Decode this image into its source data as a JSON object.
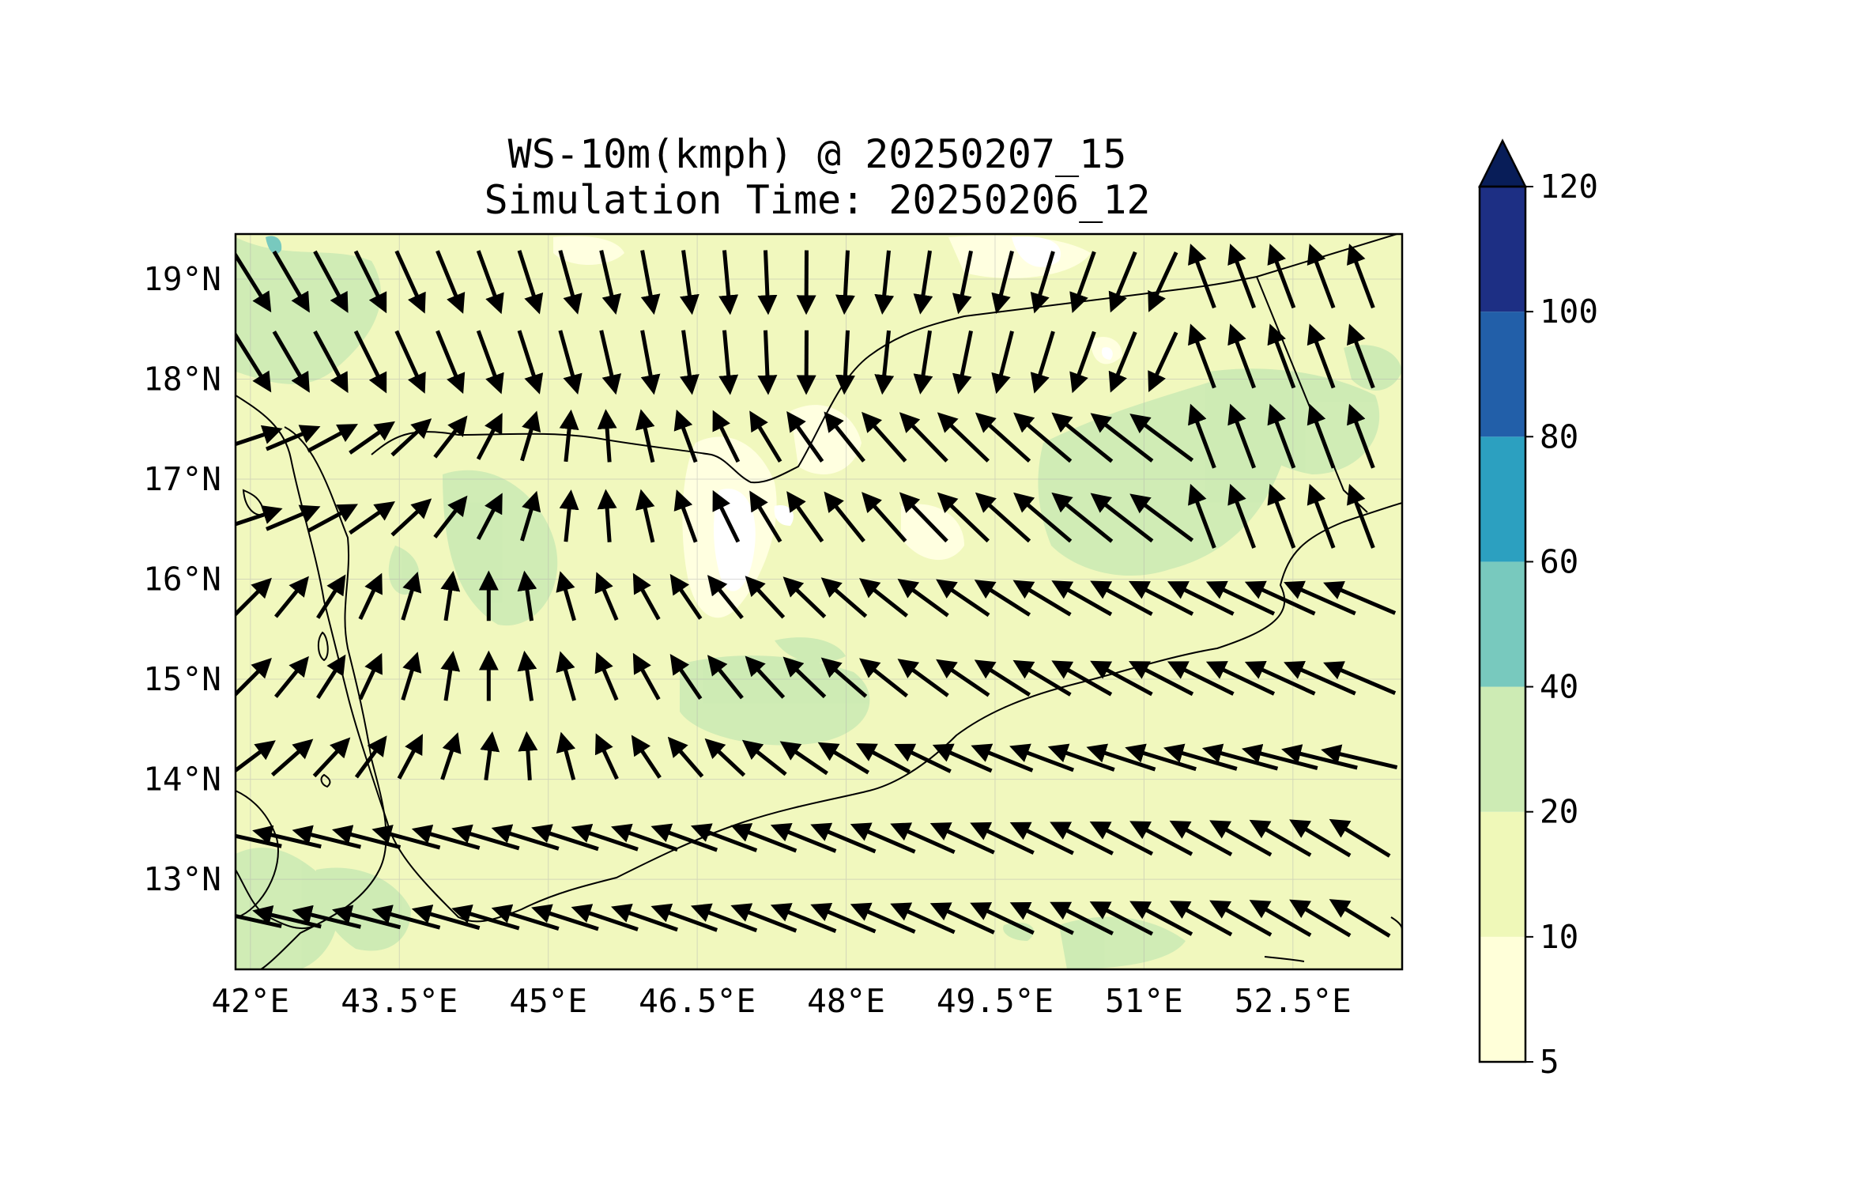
{
  "title": {
    "line1": "WS-10m(kmph) @ 20250207_15",
    "line2": "Simulation Time: 20250206_12"
  },
  "map": {
    "lon_range": [
      41.85,
      53.6
    ],
    "lat_range": [
      12.1,
      19.45
    ],
    "background_color": "#f1f8be",
    "gridlines": true,
    "x_ticks": [
      "42°E",
      "43.5°E",
      "45°E",
      "46.5°E",
      "48°E",
      "49.5°E",
      "51°E",
      "52.5°E"
    ],
    "x_tick_values": [
      42,
      43.5,
      45,
      46.5,
      48,
      49.5,
      51,
      52.5
    ],
    "y_ticks": [
      "19°N",
      "18°N",
      "17°N",
      "16°N",
      "15°N",
      "14°N",
      "13°N"
    ],
    "y_tick_values": [
      19,
      18,
      17,
      16,
      15,
      14,
      13
    ]
  },
  "colorbar": {
    "levels": [
      5,
      10,
      20,
      40,
      60,
      80,
      100,
      120
    ],
    "labels": [
      "5",
      "10",
      "20",
      "40",
      "60",
      "80",
      "100",
      "120"
    ],
    "colors": [
      "#ffffd9",
      "#eff8b8",
      "#cdebb4",
      "#78c9be",
      "#2ca0c0",
      "#225fa9",
      "#1d2f84"
    ],
    "extend_color": "#081d58",
    "extend": "max"
  },
  "wind_vectors": {
    "lon": [
      42.0,
      42.4,
      42.8,
      43.2,
      43.6,
      44.0,
      44.4,
      44.8,
      45.2,
      45.6,
      46.0,
      46.4,
      46.8,
      47.2,
      47.6,
      48.0,
      48.4,
      48.8,
      49.2,
      49.6,
      50.0,
      50.4,
      50.8,
      51.2,
      51.6,
      52.0,
      52.4,
      52.8,
      53.2
    ],
    "lat": [
      19.0,
      18.2,
      17.4,
      16.6,
      15.8,
      15.0,
      14.2,
      13.4,
      12.6
    ],
    "note_units": "kmph"
  }
}
